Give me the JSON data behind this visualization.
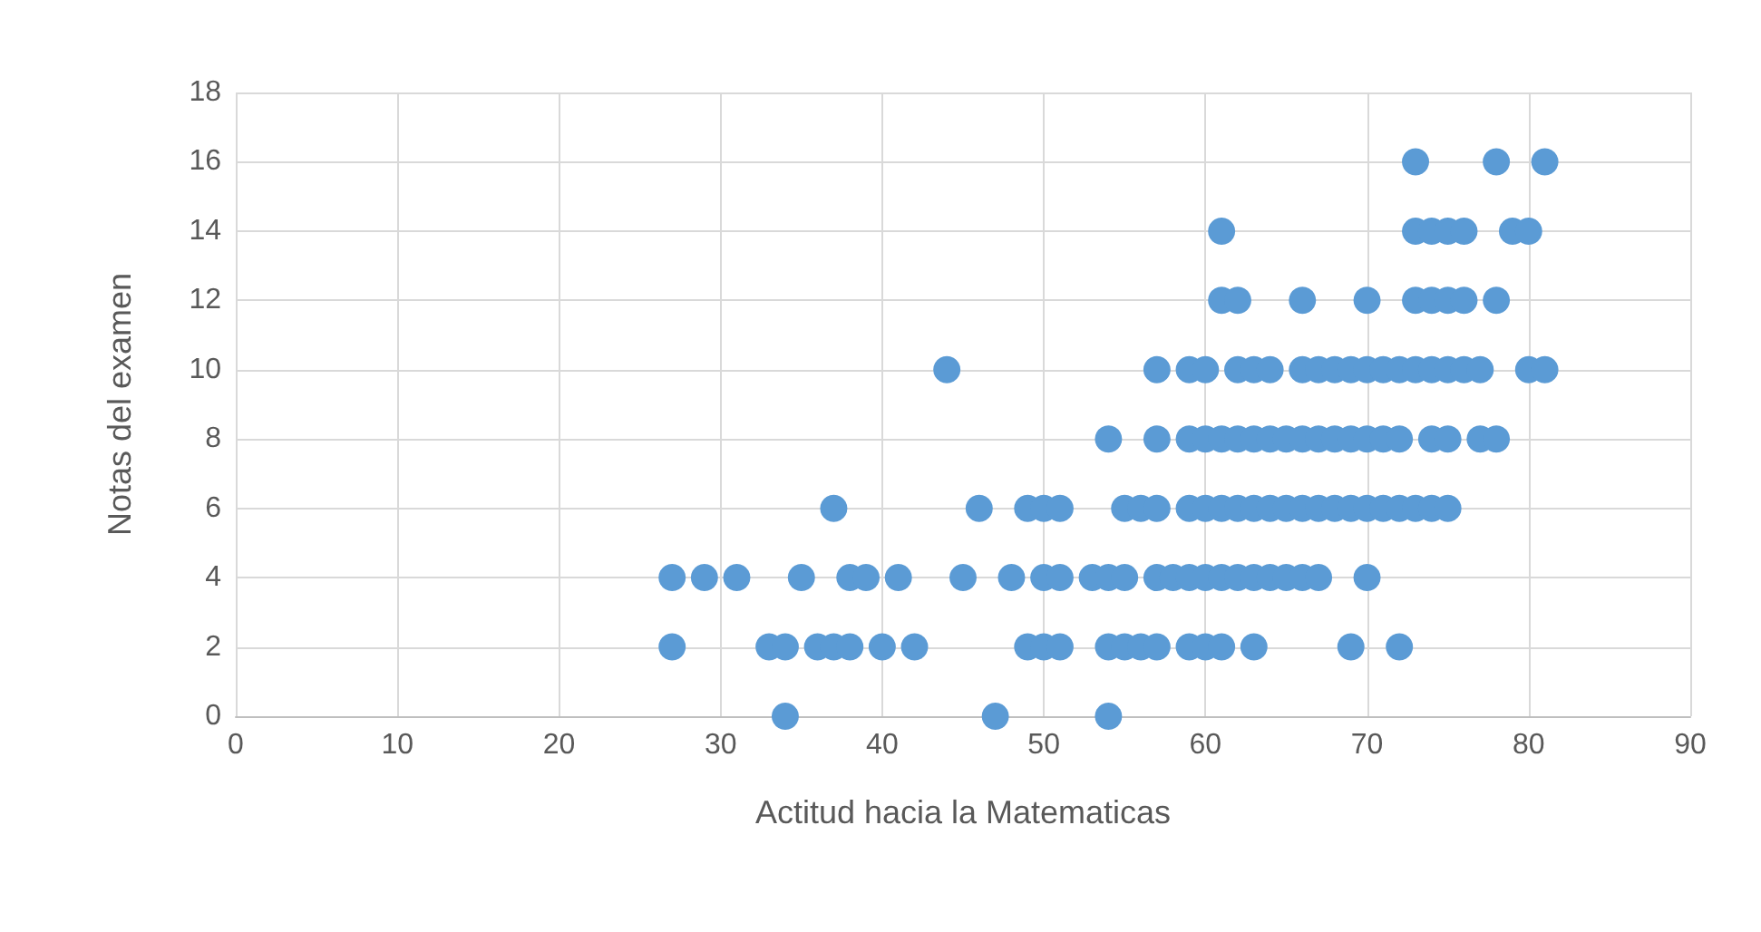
{
  "chart_data": {
    "type": "scatter",
    "xlabel": "Actitud hacia la Matematicas",
    "ylabel": "Notas del examen",
    "xlim": [
      0,
      90
    ],
    "xticks": [
      0,
      10,
      20,
      30,
      40,
      50,
      60,
      70,
      80,
      90
    ],
    "ylim": [
      0,
      18
    ],
    "yticks": [
      0,
      2,
      4,
      6,
      8,
      10,
      12,
      14,
      16,
      18
    ],
    "grid": true,
    "marker": "circle",
    "series": [
      {
        "color": "#5b9bd5",
        "x": [
          73,
          78,
          81,
          61,
          73,
          74,
          75,
          76,
          79,
          80,
          61,
          62,
          66,
          70,
          73,
          74,
          75,
          76,
          78,
          44,
          57,
          59,
          60,
          62,
          63,
          64,
          66,
          67,
          68,
          69,
          70,
          71,
          72,
          73,
          74,
          75,
          76,
          77,
          80,
          81,
          54,
          57,
          59,
          60,
          61,
          62,
          63,
          64,
          65,
          66,
          67,
          68,
          69,
          70,
          71,
          72,
          74,
          75,
          77,
          78,
          37,
          46,
          49,
          50,
          51,
          55,
          56,
          57,
          59,
          60,
          61,
          62,
          63,
          64,
          65,
          66,
          67,
          68,
          69,
          70,
          71,
          72,
          73,
          74,
          75,
          27,
          29,
          31,
          35,
          38,
          39,
          41,
          45,
          48,
          50,
          51,
          53,
          54,
          55,
          57,
          58,
          59,
          60,
          61,
          62,
          63,
          64,
          65,
          66,
          67,
          70,
          27,
          33,
          34,
          36,
          37,
          38,
          40,
          42,
          49,
          50,
          51,
          54,
          55,
          56,
          57,
          59,
          60,
          61,
          63,
          69,
          72,
          34,
          47,
          54
        ],
        "values": [
          16,
          16,
          16,
          14,
          14,
          14,
          14,
          14,
          14,
          14,
          12,
          12,
          12,
          12,
          12,
          12,
          12,
          12,
          12,
          10,
          10,
          10,
          10,
          10,
          10,
          10,
          10,
          10,
          10,
          10,
          10,
          10,
          10,
          10,
          10,
          10,
          10,
          10,
          10,
          10,
          8,
          8,
          8,
          8,
          8,
          8,
          8,
          8,
          8,
          8,
          8,
          8,
          8,
          8,
          8,
          8,
          8,
          8,
          8,
          8,
          6,
          6,
          6,
          6,
          6,
          6,
          6,
          6,
          6,
          6,
          6,
          6,
          6,
          6,
          6,
          6,
          6,
          6,
          6,
          6,
          6,
          6,
          6,
          6,
          6,
          4,
          4,
          4,
          4,
          4,
          4,
          4,
          4,
          4,
          4,
          4,
          4,
          4,
          4,
          4,
          4,
          4,
          4,
          4,
          4,
          4,
          4,
          4,
          4,
          4,
          4,
          2,
          2,
          2,
          2,
          2,
          2,
          2,
          2,
          2,
          2,
          2,
          2,
          2,
          2,
          2,
          2,
          2,
          2,
          2,
          2,
          2,
          0,
          0,
          0
        ]
      }
    ]
  }
}
